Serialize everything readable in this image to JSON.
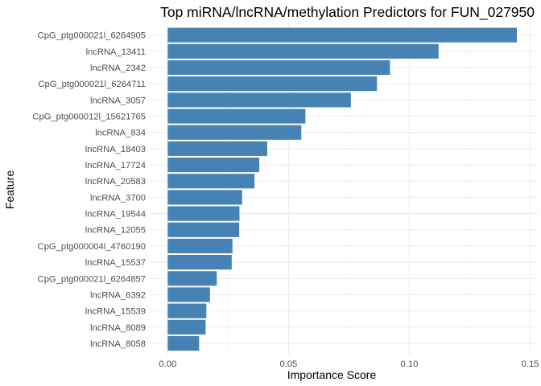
{
  "chart_data": {
    "type": "bar",
    "orientation": "horizontal",
    "title": "Top miRNA/lncRNA/methylation Predictors for FUN_027950",
    "xlabel": "Importance Score",
    "ylabel": "Feature",
    "xlim": [
      0,
      0.15
    ],
    "xticks": [
      0,
      0.05,
      0.1,
      0.15
    ],
    "xtick_labels": [
      "0.00",
      "0.05",
      "0.10",
      "0.15"
    ],
    "grid": true,
    "legend": "none",
    "bar_color": "#4682b4",
    "categories": [
      "CpG_ptg000021l_6264905",
      "lncRNA_13411",
      "lncRNA_2342",
      "CpG_ptg000021l_6264711",
      "lncRNA_3057",
      "CpG_ptg000012l_15621765",
      "lncRNA_834",
      "lncRNA_18403",
      "lncRNA_17724",
      "lncRNA_20583",
      "lncRNA_3700",
      "lncRNA_19544",
      "lncRNA_12055",
      "CpG_ptg000004l_4760190",
      "lncRNA_15537",
      "CpG_ptg000021l_6264857",
      "lncRNA_6392",
      "lncRNA_15539",
      "lncRNA_8089",
      "lncRNA_8058"
    ],
    "values": [
      0.1445,
      0.1121,
      0.092,
      0.0866,
      0.0758,
      0.057,
      0.0553,
      0.0412,
      0.0379,
      0.0359,
      0.0308,
      0.0297,
      0.0296,
      0.0268,
      0.0265,
      0.0203,
      0.0175,
      0.016,
      0.0157,
      0.013
    ]
  }
}
